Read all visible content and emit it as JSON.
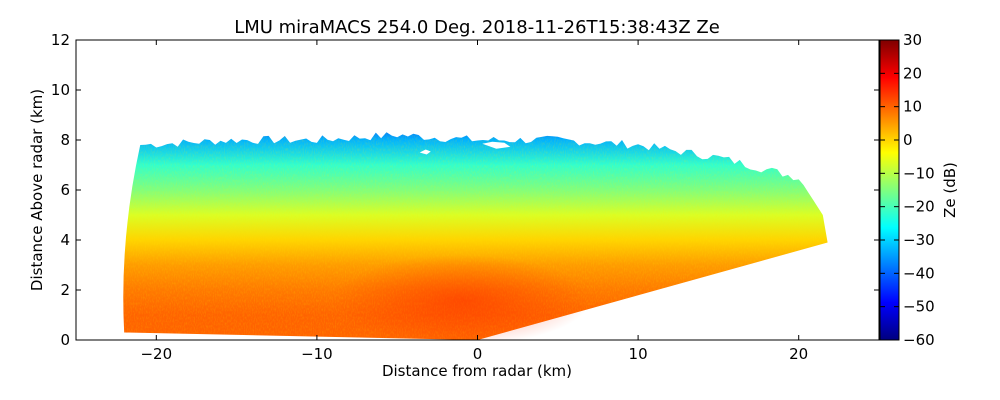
{
  "chart_data": {
    "type": "heatmap",
    "subtype": "radar-rhi",
    "title": "LMU miraMACS 254.0 Deg. 2018-11-26T15:38:43Z  Ze",
    "xlabel": "Distance from radar (km)",
    "ylabel": "Distance Above radar  (km)",
    "xlim": [
      -25,
      25
    ],
    "ylim": [
      0,
      12
    ],
    "xticks": [
      -20,
      -10,
      0,
      10,
      20
    ],
    "yticks": [
      0,
      2,
      4,
      6,
      8,
      10,
      12
    ],
    "colorbar": {
      "label": "Ze (dB)",
      "vmin": -60,
      "vmax": 30,
      "ticks": [
        30,
        20,
        10,
        0,
        -10,
        -20,
        -30,
        -40,
        -50,
        -60
      ],
      "colormap": [
        "#00007f",
        "#0000ff",
        "#007fff",
        "#00ffff",
        "#7fff7f",
        "#ffff00",
        "#ff7f00",
        "#ff0000",
        "#7f0000"
      ]
    },
    "echo_extent": {
      "left_edge_km": -22,
      "right_edge_km": 21.8,
      "top_height_km": [
        [
          -21,
          7.8
        ],
        [
          -15,
          8.0
        ],
        [
          -10,
          8.0
        ],
        [
          -5,
          8.2
        ],
        [
          0,
          8.0
        ],
        [
          5,
          8.0
        ],
        [
          10,
          7.8
        ],
        [
          15,
          7.3
        ],
        [
          20,
          6.5
        ],
        [
          21.5,
          5.0
        ],
        [
          21.8,
          3.9
        ]
      ],
      "base_height_km": [
        [
          -22,
          0.3
        ],
        [
          0,
          0
        ],
        [
          21.8,
          3.9
        ]
      ]
    },
    "reflectivity_profile": [
      {
        "height_km": 8.0,
        "ze_db": -33
      },
      {
        "height_km": 7.0,
        "ze_db": -22
      },
      {
        "height_km": 6.0,
        "ze_db": -15
      },
      {
        "height_km": 5.0,
        "ze_db": -7
      },
      {
        "height_km": 4.0,
        "ze_db": 0
      },
      {
        "height_km": 3.0,
        "ze_db": 5
      },
      {
        "height_km": 2.0,
        "ze_db": 8
      },
      {
        "height_km": 1.0,
        "ze_db": 10
      }
    ]
  }
}
